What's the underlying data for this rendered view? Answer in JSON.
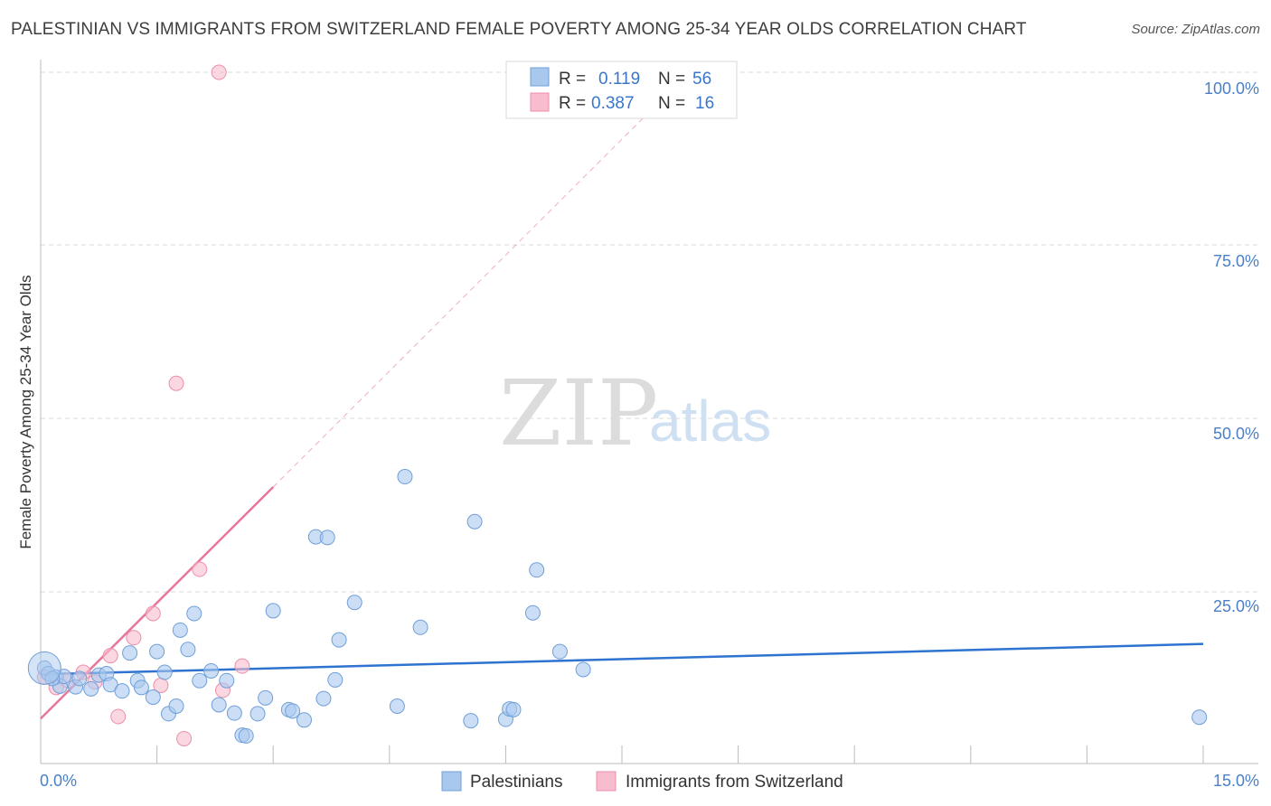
{
  "title": "PALESTINIAN VS IMMIGRANTS FROM SWITZERLAND FEMALE POVERTY AMONG 25-34 YEAR OLDS CORRELATION CHART",
  "source": "Source: ZipAtlas.com",
  "watermark": {
    "zip": "ZIP",
    "atlas": "atlas"
  },
  "colors": {
    "blue_fill": "#a9c8ee",
    "blue_stroke": "#6f9fd8",
    "blue_line": "#2f73d0",
    "pink_fill": "#f7bccd",
    "pink_stroke": "#ec8fab",
    "pink_line": "#e8769a",
    "tick_color": "#4a7fc8"
  },
  "legend": {
    "rows": [
      {
        "r_label": "R =",
        "r_value": "0.119",
        "n_label": "N =",
        "n_value": "56"
      },
      {
        "r_label": "R =",
        "r_value": "0.387",
        "n_label": "N =",
        "n_value": "16"
      }
    ]
  },
  "chart_data": {
    "type": "scatter",
    "title": "PALESTINIAN VS IMMIGRANTS FROM SWITZERLAND FEMALE POVERTY AMONG 25-34 YEAR OLDS CORRELATION CHART",
    "xlabel": "",
    "ylabel": "Female Poverty Among 25-34 Year Olds",
    "xlim": [
      0,
      15
    ],
    "ylim": [
      0,
      100
    ],
    "x_tick_labels": [
      "0.0%",
      "15.0%"
    ],
    "y_tick_labels": [
      "25.0%",
      "50.0%",
      "75.0%",
      "100.0%"
    ],
    "y_ticks": [
      25,
      50,
      75,
      100
    ],
    "grid": true,
    "legend_position": "top-center",
    "series": [
      {
        "name": "Palestinians",
        "color": "#a9c8ee",
        "r": 0.119,
        "n": 56,
        "trend": {
          "x": [
            0,
            15
          ],
          "y": [
            12.9,
            17.3
          ]
        },
        "points": [
          [
            0.05,
            13.8
          ],
          [
            0.1,
            13.0
          ],
          [
            0.2,
            12.5
          ],
          [
            0.25,
            11.2
          ],
          [
            0.3,
            12.6
          ],
          [
            0.45,
            11.1
          ],
          [
            0.5,
            12.3
          ],
          [
            0.65,
            10.8
          ],
          [
            0.75,
            12.8
          ],
          [
            0.85,
            13.0
          ],
          [
            0.9,
            11.4
          ],
          [
            1.05,
            10.5
          ],
          [
            1.15,
            16.0
          ],
          [
            1.25,
            12.0
          ],
          [
            1.3,
            11.0
          ],
          [
            1.45,
            9.6
          ],
          [
            1.5,
            16.2
          ],
          [
            1.6,
            13.2
          ],
          [
            1.65,
            7.2
          ],
          [
            1.75,
            8.3
          ],
          [
            1.8,
            19.3
          ],
          [
            1.9,
            16.5
          ],
          [
            1.98,
            21.7
          ],
          [
            2.05,
            12.0
          ],
          [
            2.2,
            13.4
          ],
          [
            2.3,
            8.5
          ],
          [
            2.4,
            12.0
          ],
          [
            2.5,
            7.3
          ],
          [
            2.6,
            4.1
          ],
          [
            2.65,
            4.0
          ],
          [
            2.8,
            7.2
          ],
          [
            2.9,
            9.5
          ],
          [
            3.0,
            22.1
          ],
          [
            3.2,
            7.8
          ],
          [
            3.25,
            7.6
          ],
          [
            3.4,
            6.3
          ],
          [
            3.55,
            32.8
          ],
          [
            3.65,
            9.4
          ],
          [
            3.7,
            32.7
          ],
          [
            3.8,
            12.1
          ],
          [
            3.85,
            17.9
          ],
          [
            4.05,
            23.3
          ],
          [
            4.6,
            8.3
          ],
          [
            4.7,
            41.5
          ],
          [
            4.9,
            19.7
          ],
          [
            5.55,
            6.2
          ],
          [
            5.6,
            35.0
          ],
          [
            6.0,
            6.4
          ],
          [
            6.05,
            7.9
          ],
          [
            6.1,
            7.8
          ],
          [
            6.35,
            21.8
          ],
          [
            6.4,
            28.0
          ],
          [
            6.7,
            16.2
          ],
          [
            7.0,
            13.6
          ],
          [
            14.95,
            6.7
          ],
          [
            0.15,
            12.3
          ]
        ],
        "large_points": [
          [
            0.05,
            13.8
          ]
        ]
      },
      {
        "name": "Immigrants from Switzerland",
        "color": "#f7bccd",
        "r": 0.387,
        "n": 16,
        "trend": {
          "x": [
            0,
            3.0
          ],
          "y": [
            6.5,
            40.0
          ]
        },
        "trend_extension": {
          "x": [
            3.0,
            8.5
          ],
          "y": [
            40.0,
            101.5
          ]
        },
        "points": [
          [
            0.05,
            12.5
          ],
          [
            0.2,
            11.0
          ],
          [
            0.35,
            12.0
          ],
          [
            0.55,
            13.2
          ],
          [
            0.7,
            11.8
          ],
          [
            0.9,
            15.6
          ],
          [
            1.0,
            6.8
          ],
          [
            1.2,
            18.2
          ],
          [
            1.45,
            21.7
          ],
          [
            1.55,
            11.3
          ],
          [
            1.75,
            55.0
          ],
          [
            1.85,
            3.6
          ],
          [
            2.05,
            28.1
          ],
          [
            2.35,
            10.6
          ],
          [
            2.6,
            14.1
          ],
          [
            2.3,
            100.0
          ]
        ]
      }
    ]
  },
  "bottom_legend": [
    {
      "label": "Palestinians",
      "color": "#a9c8ee"
    },
    {
      "label": "Immigrants from Switzerland",
      "color": "#f7bccd"
    }
  ]
}
